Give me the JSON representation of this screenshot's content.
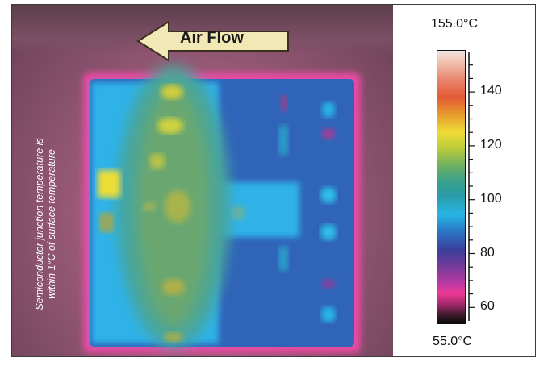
{
  "image": {
    "annotation": "Air Flow",
    "side_note_line1": "Semiconductor junction temperature is",
    "side_note_line2": "within 1°C of surface temperature"
  },
  "colorbar": {
    "max_label": "155.0°C",
    "min_label": "55.0°C",
    "range": [
      55,
      155
    ],
    "ticks": [
      {
        "value": 140,
        "label": "140"
      },
      {
        "value": 120,
        "label": "120"
      },
      {
        "value": 100,
        "label": "100"
      },
      {
        "value": 80,
        "label": "80"
      },
      {
        "value": 60,
        "label": "60"
      }
    ]
  }
}
